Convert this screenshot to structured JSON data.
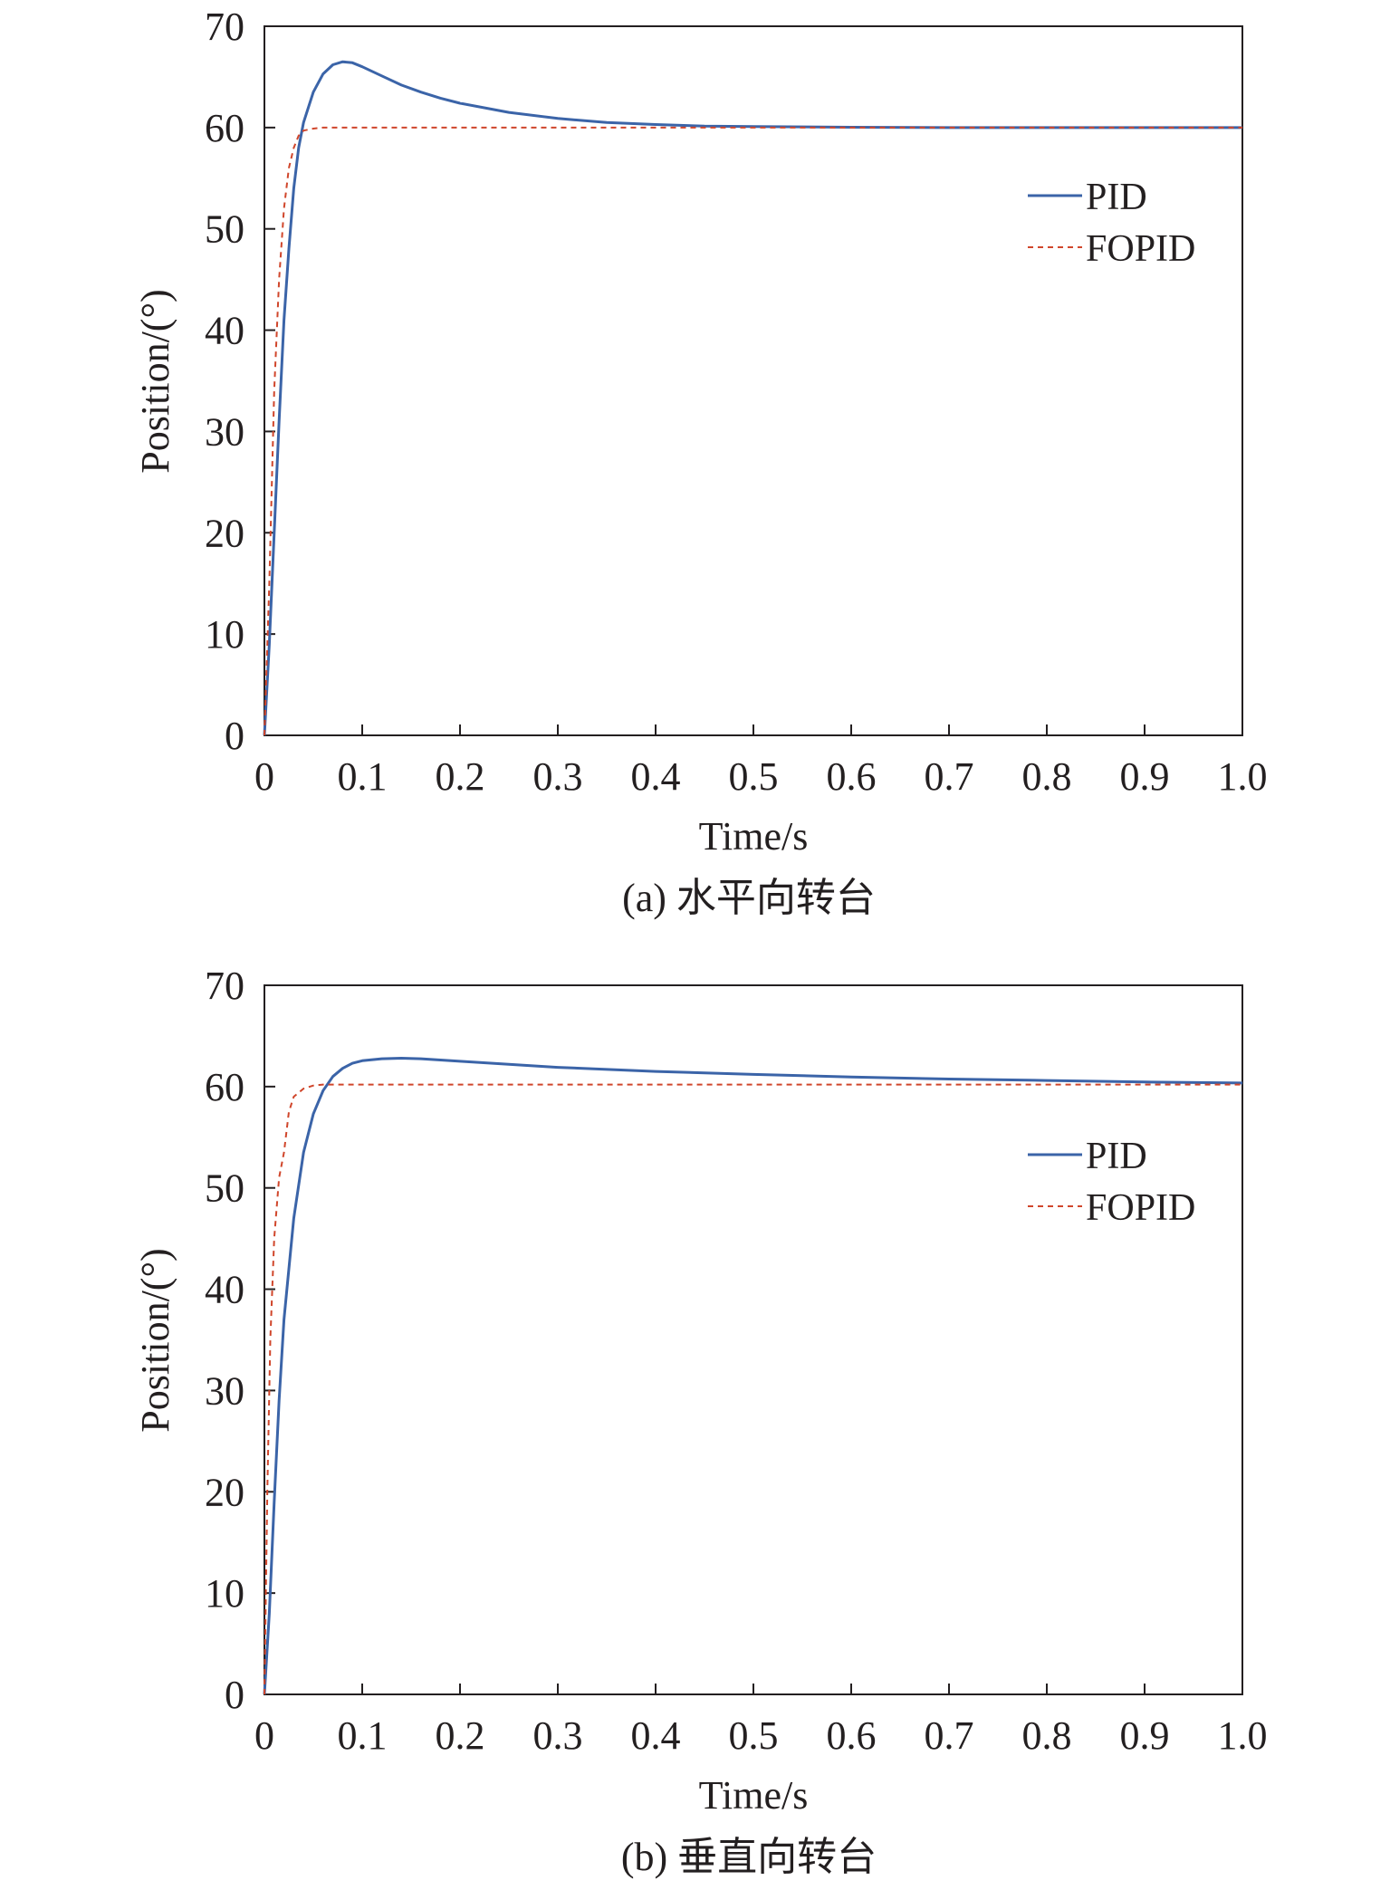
{
  "colors": {
    "pid": "#3b64a8",
    "fopid": "#d0462b",
    "axis": "#231f20"
  },
  "chart_data": [
    {
      "type": "line",
      "caption": "(a) 水平向转台",
      "xlabel": "Time/s",
      "ylabel": "Position/(°)",
      "xlim": [
        0,
        1.0
      ],
      "ylim": [
        0,
        70
      ],
      "xticks": [
        "0",
        "0.1",
        "0.2",
        "0.3",
        "0.4",
        "0.5",
        "0.6",
        "0.7",
        "0.8",
        "0.9",
        "1.0"
      ],
      "yticks": [
        "0",
        "10",
        "20",
        "30",
        "40",
        "50",
        "60",
        "70"
      ],
      "grid": false,
      "legend_position": "upper-right",
      "legend": [
        "PID",
        "FOPID"
      ],
      "series": [
        {
          "name": "PID",
          "style": "solid",
          "x": [
            0,
            0.005,
            0.01,
            0.015,
            0.02,
            0.025,
            0.03,
            0.035,
            0.04,
            0.05,
            0.06,
            0.07,
            0.08,
            0.09,
            0.1,
            0.12,
            0.14,
            0.16,
            0.18,
            0.2,
            0.25,
            0.3,
            0.35,
            0.4,
            0.45,
            0.5,
            0.6,
            0.7,
            0.8,
            0.9,
            1.0
          ],
          "y": [
            0,
            9,
            20,
            31,
            41,
            48,
            54,
            58,
            60.5,
            63.5,
            65.3,
            66.2,
            66.5,
            66.4,
            66.0,
            65.1,
            64.2,
            63.5,
            62.9,
            62.4,
            61.5,
            60.9,
            60.5,
            60.3,
            60.15,
            60.1,
            60.03,
            60.0,
            60.0,
            60.0,
            60.0
          ]
        },
        {
          "name": "FOPID",
          "style": "dashed",
          "x": [
            0,
            0.005,
            0.01,
            0.015,
            0.02,
            0.025,
            0.03,
            0.035,
            0.04,
            0.05,
            0.06,
            0.07,
            0.1,
            0.2,
            0.4,
            0.6,
            0.8,
            1.0
          ],
          "y": [
            0,
            15,
            34,
            45,
            52,
            56,
            58,
            59.2,
            59.7,
            59.9,
            60,
            60,
            60,
            60,
            60,
            60,
            60,
            60
          ]
        }
      ]
    },
    {
      "type": "line",
      "caption": "(b) 垂直向转台",
      "xlabel": "Time/s",
      "ylabel": "Position/(°)",
      "xlim": [
        0,
        1.0
      ],
      "ylim": [
        0,
        70
      ],
      "xticks": [
        "0",
        "0.1",
        "0.2",
        "0.3",
        "0.4",
        "0.5",
        "0.6",
        "0.7",
        "0.8",
        "0.9",
        "1.0"
      ],
      "yticks": [
        "0",
        "10",
        "20",
        "30",
        "40",
        "50",
        "60",
        "70"
      ],
      "grid": false,
      "legend_position": "upper-right",
      "legend": [
        "PID",
        "FOPID"
      ],
      "series": [
        {
          "name": "PID",
          "style": "solid",
          "x": [
            0,
            0.005,
            0.01,
            0.015,
            0.02,
            0.03,
            0.04,
            0.05,
            0.06,
            0.07,
            0.08,
            0.09,
            0.1,
            0.12,
            0.14,
            0.16,
            0.2,
            0.25,
            0.3,
            0.4,
            0.5,
            0.6,
            0.7,
            0.8,
            0.9,
            1.0
          ],
          "y": [
            0,
            8,
            19,
            29,
            37,
            47,
            53.5,
            57.3,
            59.6,
            61.0,
            61.8,
            62.3,
            62.55,
            62.75,
            62.8,
            62.75,
            62.5,
            62.2,
            61.9,
            61.5,
            61.2,
            60.95,
            60.75,
            60.6,
            60.45,
            60.35
          ]
        },
        {
          "name": "FOPID",
          "style": "dashed",
          "x": [
            0,
            0.003,
            0.006,
            0.01,
            0.015,
            0.02,
            0.025,
            0.03,
            0.04,
            0.05,
            0.06,
            0.1,
            0.2,
            0.4,
            0.6,
            0.8,
            1.0
          ],
          "y": [
            0,
            20,
            35,
            45,
            51,
            53.5,
            57.5,
            59,
            59.8,
            60.1,
            60.2,
            60.2,
            60.2,
            60.2,
            60.2,
            60.2,
            60.2
          ]
        }
      ]
    }
  ]
}
